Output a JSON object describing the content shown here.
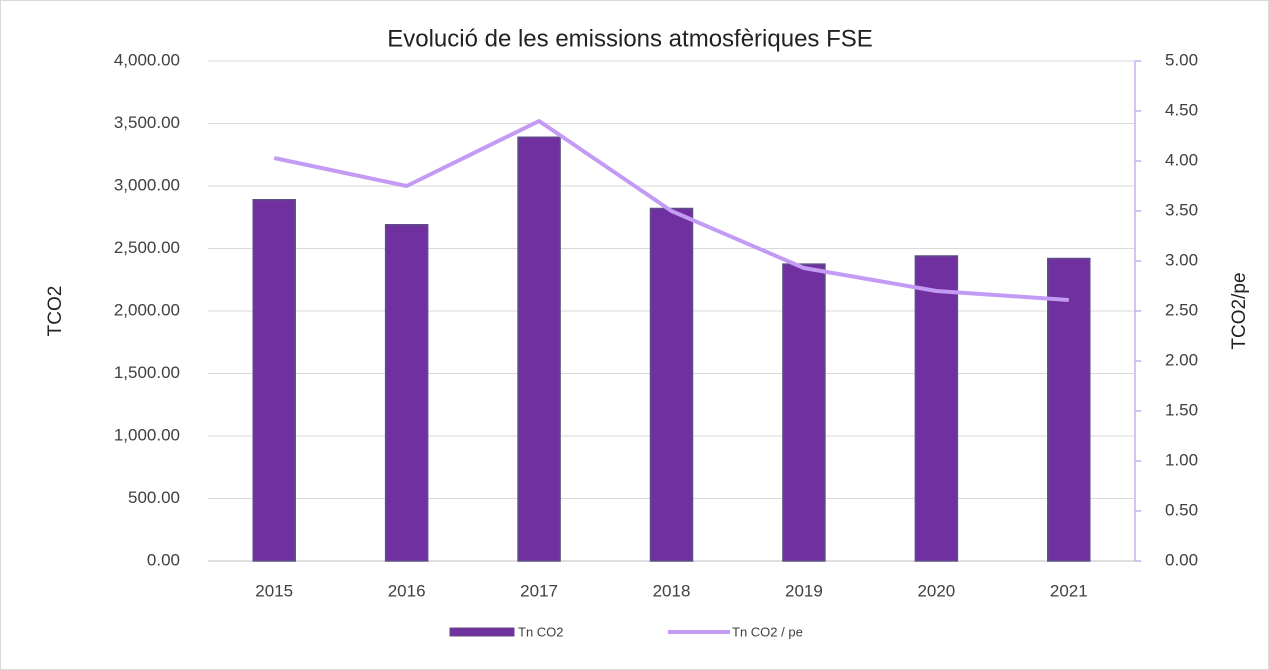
{
  "chart_data": {
    "type": "bar+line",
    "title": "Evolució de les emissions atmosfèriques FSE",
    "y_label": "TCO2",
    "y2_label": "TCO2/pe",
    "categories": [
      "2015",
      "2016",
      "2017",
      "2018",
      "2019",
      "2020",
      "2021"
    ],
    "series": [
      {
        "name": "Tn CO2",
        "type": "bar",
        "color": "#7030a0",
        "values": [
          2890,
          2690,
          3390,
          2820,
          2375,
          2440,
          2420
        ]
      },
      {
        "name": "Tn CO2 / pe",
        "type": "line",
        "axis": "y2",
        "color": "#c39bf5",
        "values": [
          4.03,
          3.75,
          4.4,
          3.5,
          2.93,
          2.7,
          2.61
        ]
      }
    ],
    "ylim": [
      0,
      4000
    ],
    "yticks": [
      {
        "value": 0,
        "label": "0.00"
      },
      {
        "value": 500,
        "label": "500.00"
      },
      {
        "value": 1000,
        "label": "1,000.00"
      },
      {
        "value": 1500,
        "label": "1,500.00"
      },
      {
        "value": 2000,
        "label": "2,000.00"
      },
      {
        "value": 2500,
        "label": "2,500.00"
      },
      {
        "value": 3000,
        "label": "3,000.00"
      },
      {
        "value": 3500,
        "label": "3,500.00"
      },
      {
        "value": 4000,
        "label": "4,000.00"
      }
    ],
    "y2lim": [
      0,
      5
    ],
    "y2ticks": [
      {
        "value": 0,
        "label": "0.00"
      },
      {
        "value": 0.5,
        "label": "0.50"
      },
      {
        "value": 1,
        "label": "1.00"
      },
      {
        "value": 1.5,
        "label": "1.50"
      },
      {
        "value": 2,
        "label": "2.00"
      },
      {
        "value": 2.5,
        "label": "2.50"
      },
      {
        "value": 3,
        "label": "3.00"
      },
      {
        "value": 3.5,
        "label": "3.50"
      },
      {
        "value": 4,
        "label": "4.00"
      },
      {
        "value": 4.5,
        "label": "4.50"
      },
      {
        "value": 5,
        "label": "5.00"
      }
    ],
    "grid": true,
    "legend": "bottom"
  }
}
